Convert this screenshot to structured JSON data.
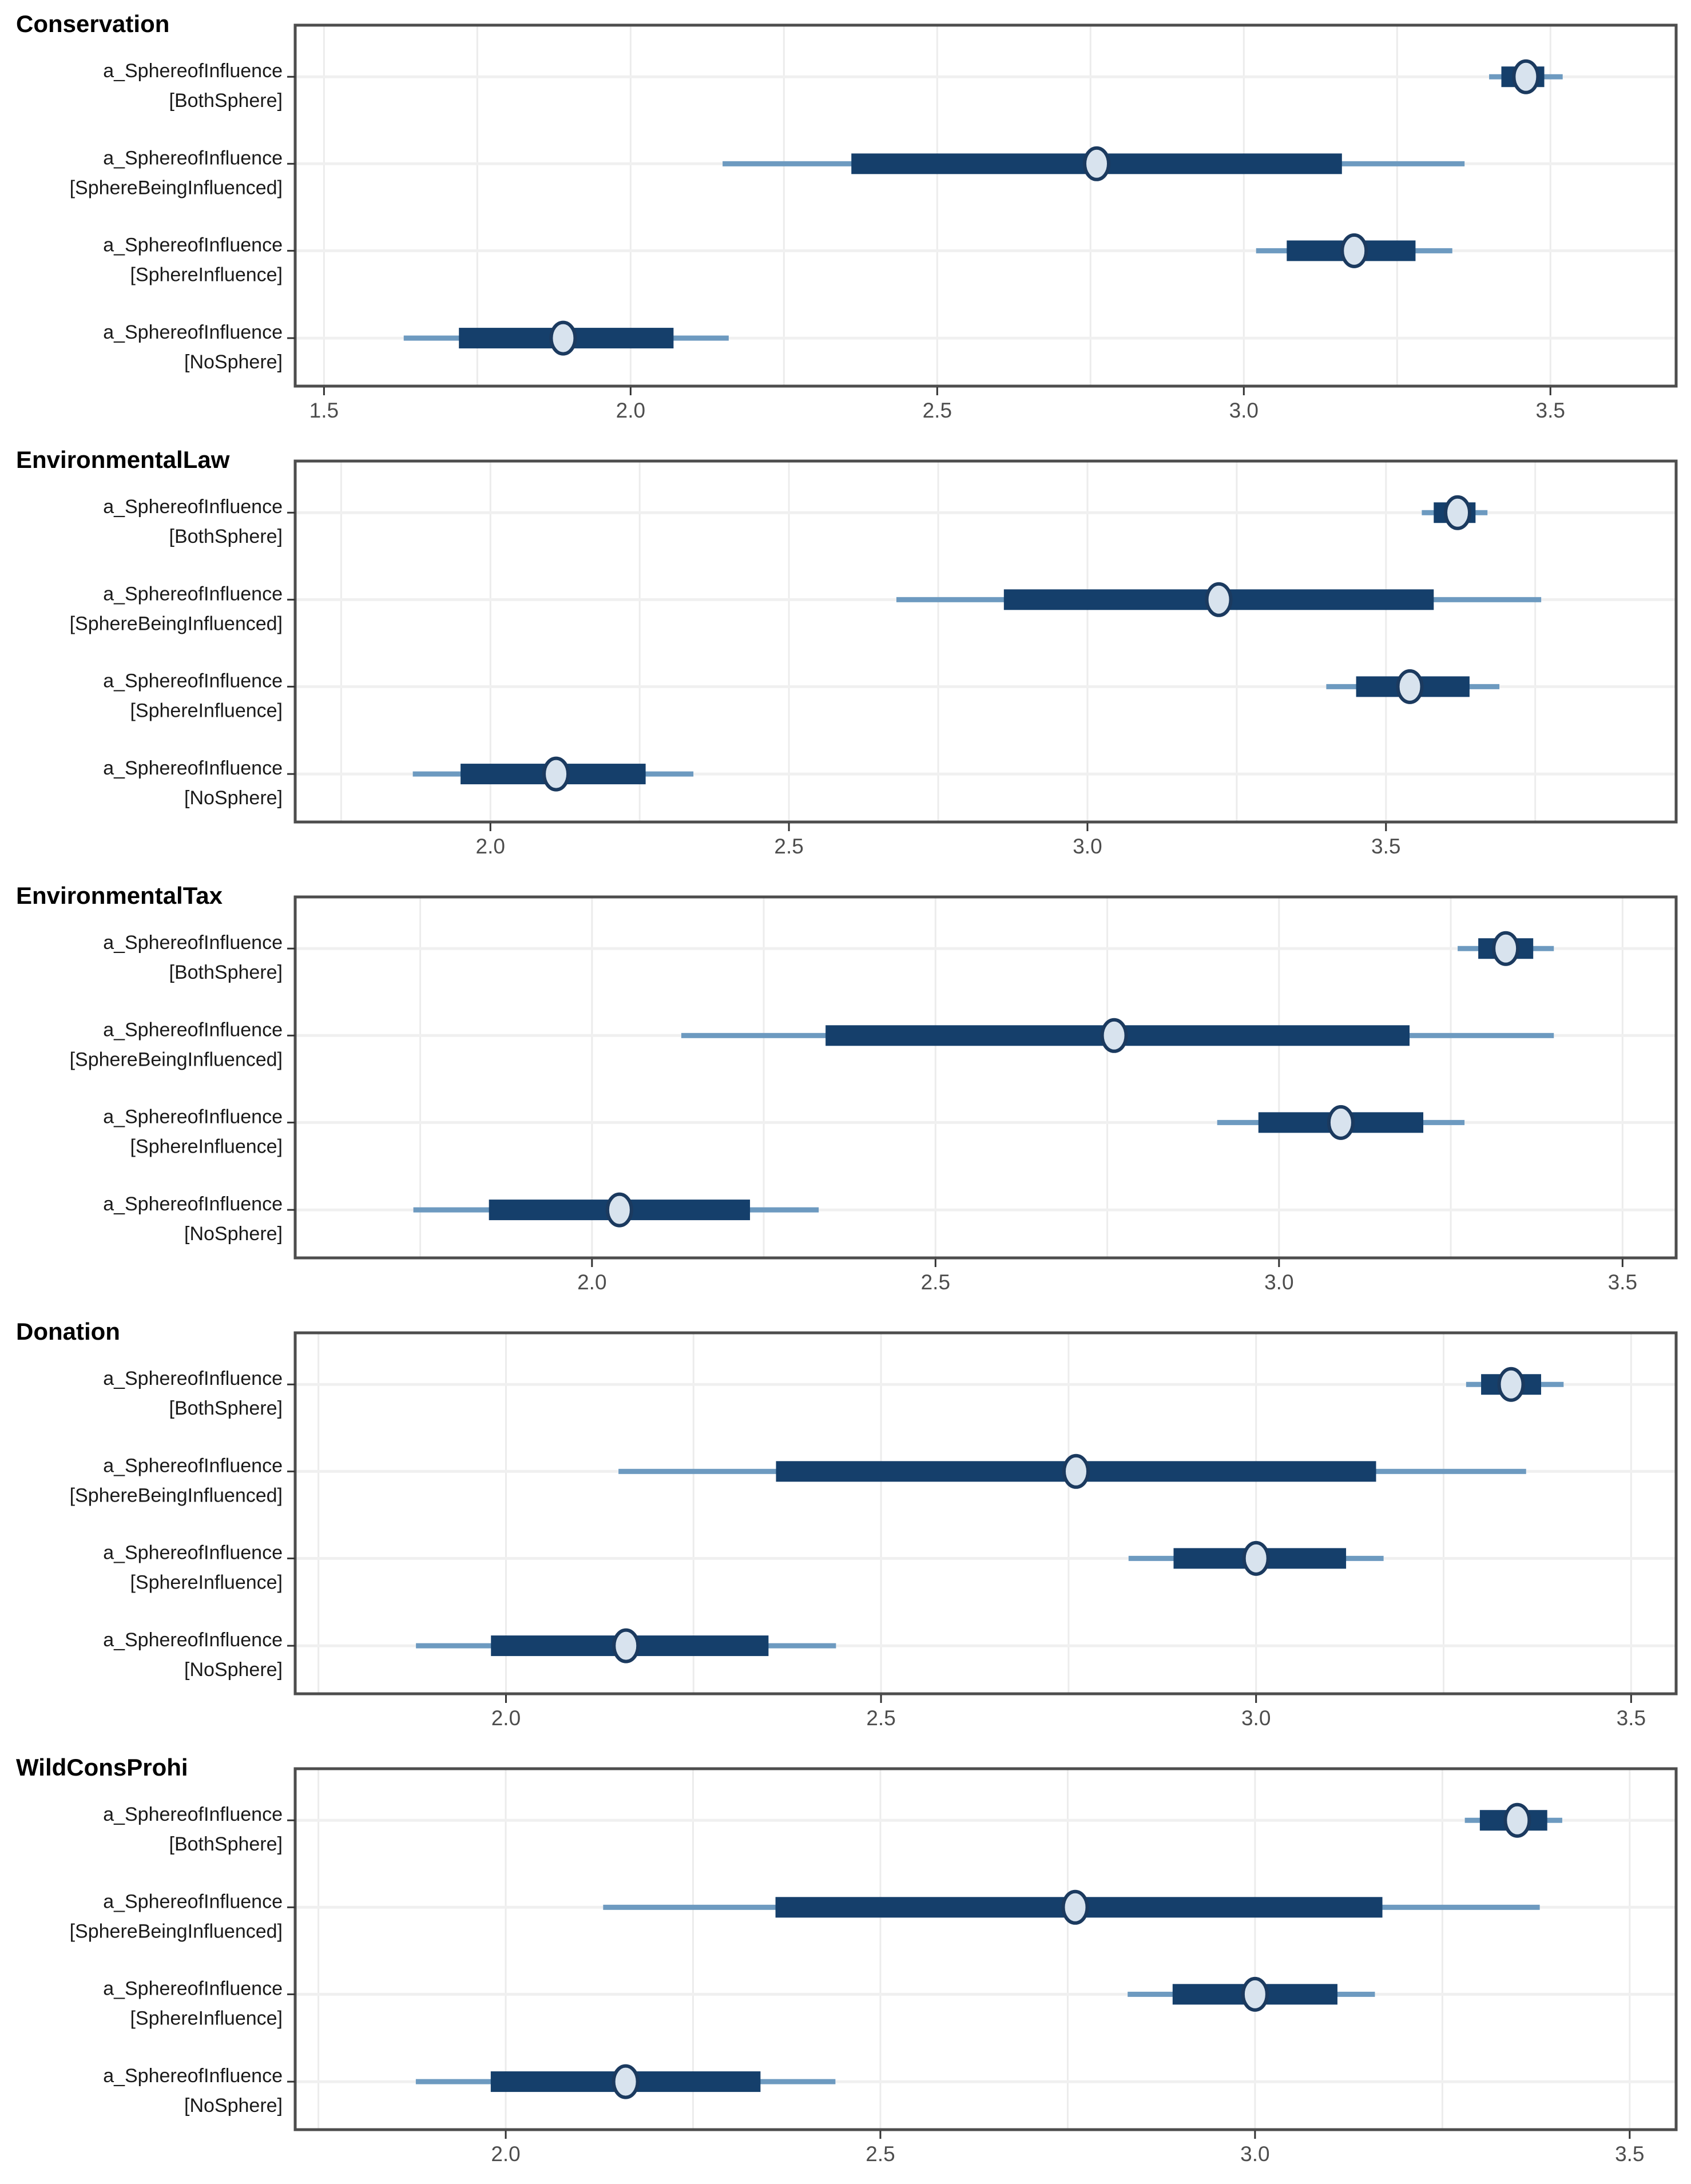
{
  "figure": {
    "description": "Five stacked posterior interval plots (points with 50% and 90% credible intervals) for sphere-of-influence parameters",
    "panel_titles": [
      "Conservation",
      "EnvironmentalLaw",
      "EnvironmentalTax",
      "Donation",
      "WildConsProhi"
    ]
  },
  "colors": {
    "outer_interval": "#6d9ac0",
    "inner_interval": "#153f6b",
    "point_fill": "#d8e3ee",
    "point_stroke": "#1b3a5f",
    "gridline": "#ececec",
    "row_gridline": "#f0f0f0",
    "panel_border": "#4d4d4d",
    "tick_mark": "#333333",
    "tick_label": "#4d4d4d",
    "axis_label": "#1a1a1a",
    "title": "#000000",
    "background": "#ffffff"
  },
  "chart_data": {
    "type": "interval",
    "orientation": "horizontal",
    "grid": "on",
    "legend": "none",
    "row_labels": [
      [
        "a_SphereofInfluence",
        "[BothSphere]"
      ],
      [
        "a_SphereofInfluence",
        "[SphereBeingInfluenced]"
      ],
      [
        "a_SphereofInfluence",
        "[SphereInfluence]"
      ],
      [
        "a_SphereofInfluence",
        "[NoSphere]"
      ]
    ],
    "panels": [
      {
        "title": "Conservation",
        "xlim": [
          1.453,
          3.705
        ],
        "xticks": [
          1.5,
          2.0,
          2.5,
          3.0,
          3.5
        ],
        "rows": [
          {
            "label": [
              "a_SphereofInfluence",
              "[BothSphere]"
            ],
            "point": 3.46,
            "inner": [
              3.42,
              3.49
            ],
            "outer": [
              3.4,
              3.52
            ]
          },
          {
            "label": [
              "a_SphereofInfluence",
              "[SphereBeingInfluenced]"
            ],
            "point": 2.76,
            "inner": [
              2.36,
              3.16
            ],
            "outer": [
              2.15,
              3.36
            ]
          },
          {
            "label": [
              "a_SphereofInfluence",
              "[SphereInfluence]"
            ],
            "point": 3.18,
            "inner": [
              3.07,
              3.28
            ],
            "outer": [
              3.02,
              3.34
            ]
          },
          {
            "label": [
              "a_SphereofInfluence",
              "[NoSphere]"
            ],
            "point": 1.89,
            "inner": [
              1.72,
              2.07
            ],
            "outer": [
              1.63,
              2.16
            ]
          }
        ]
      },
      {
        "title": "EnvironmentalLaw",
        "xlim": [
          1.673,
          3.986
        ],
        "xticks": [
          2.0,
          2.5,
          3.0,
          3.5
        ],
        "rows": [
          {
            "label": [
              "a_SphereofInfluence",
              "[BothSphere]"
            ],
            "point": 3.62,
            "inner": [
              3.58,
              3.65
            ],
            "outer": [
              3.56,
              3.67
            ]
          },
          {
            "label": [
              "a_SphereofInfluence",
              "[SphereBeingInfluenced]"
            ],
            "point": 3.22,
            "inner": [
              2.86,
              3.58
            ],
            "outer": [
              2.68,
              3.76
            ]
          },
          {
            "label": [
              "a_SphereofInfluence",
              "[SphereInfluence]"
            ],
            "point": 3.54,
            "inner": [
              3.45,
              3.64
            ],
            "outer": [
              3.4,
              3.69
            ]
          },
          {
            "label": [
              "a_SphereofInfluence",
              "[NoSphere]"
            ],
            "point": 2.11,
            "inner": [
              1.95,
              2.26
            ],
            "outer": [
              1.87,
              2.34
            ]
          }
        ]
      },
      {
        "title": "EnvironmentalTax",
        "xlim": [
          1.568,
          3.578
        ],
        "xticks": [
          2.0,
          2.5,
          3.0,
          3.5
        ],
        "rows": [
          {
            "label": [
              "a_SphereofInfluence",
              "[BothSphere]"
            ],
            "point": 3.33,
            "inner": [
              3.29,
              3.37
            ],
            "outer": [
              3.26,
              3.4
            ]
          },
          {
            "label": [
              "a_SphereofInfluence",
              "[SphereBeingInfluenced]"
            ],
            "point": 2.76,
            "inner": [
              2.34,
              3.19
            ],
            "outer": [
              2.13,
              3.4
            ]
          },
          {
            "label": [
              "a_SphereofInfluence",
              "[SphereInfluence]"
            ],
            "point": 3.09,
            "inner": [
              2.97,
              3.21
            ],
            "outer": [
              2.91,
              3.27
            ]
          },
          {
            "label": [
              "a_SphereofInfluence",
              "[NoSphere]"
            ],
            "point": 2.04,
            "inner": [
              1.85,
              2.23
            ],
            "outer": [
              1.74,
              2.33
            ]
          }
        ]
      },
      {
        "title": "Donation",
        "xlim": [
          1.719,
          3.56
        ],
        "xticks": [
          2.0,
          2.5,
          3.0,
          3.5
        ],
        "rows": [
          {
            "label": [
              "a_SphereofInfluence",
              "[BothSphere]"
            ],
            "point": 3.34,
            "inner": [
              3.3,
              3.38
            ],
            "outer": [
              3.28,
              3.41
            ]
          },
          {
            "label": [
              "a_SphereofInfluence",
              "[SphereBeingInfluenced]"
            ],
            "point": 2.76,
            "inner": [
              2.36,
              3.16
            ],
            "outer": [
              2.15,
              3.36
            ]
          },
          {
            "label": [
              "a_SphereofInfluence",
              "[SphereInfluence]"
            ],
            "point": 3.0,
            "inner": [
              2.89,
              3.12
            ],
            "outer": [
              2.83,
              3.17
            ]
          },
          {
            "label": [
              "a_SphereofInfluence",
              "[NoSphere]"
            ],
            "point": 2.16,
            "inner": [
              1.98,
              2.35
            ],
            "outer": [
              1.88,
              2.44
            ]
          }
        ]
      },
      {
        "title": "WildConsProhi",
        "xlim": [
          1.719,
          3.562
        ],
        "xticks": [
          2.0,
          2.5,
          3.0,
          3.5
        ],
        "rows": [
          {
            "label": [
              "a_SphereofInfluence",
              "[BothSphere]"
            ],
            "point": 3.35,
            "inner": [
              3.3,
              3.39
            ],
            "outer": [
              3.28,
              3.41
            ]
          },
          {
            "label": [
              "a_SphereofInfluence",
              "[SphereBeingInfluenced]"
            ],
            "point": 2.76,
            "inner": [
              2.36,
              3.17
            ],
            "outer": [
              2.13,
              3.38
            ]
          },
          {
            "label": [
              "a_SphereofInfluence",
              "[SphereInfluence]"
            ],
            "point": 3.0,
            "inner": [
              2.89,
              3.11
            ],
            "outer": [
              2.83,
              3.16
            ]
          },
          {
            "label": [
              "a_SphereofInfluence",
              "[NoSphere]"
            ],
            "point": 2.16,
            "inner": [
              1.98,
              2.34
            ],
            "outer": [
              1.88,
              2.44
            ]
          }
        ]
      }
    ]
  }
}
